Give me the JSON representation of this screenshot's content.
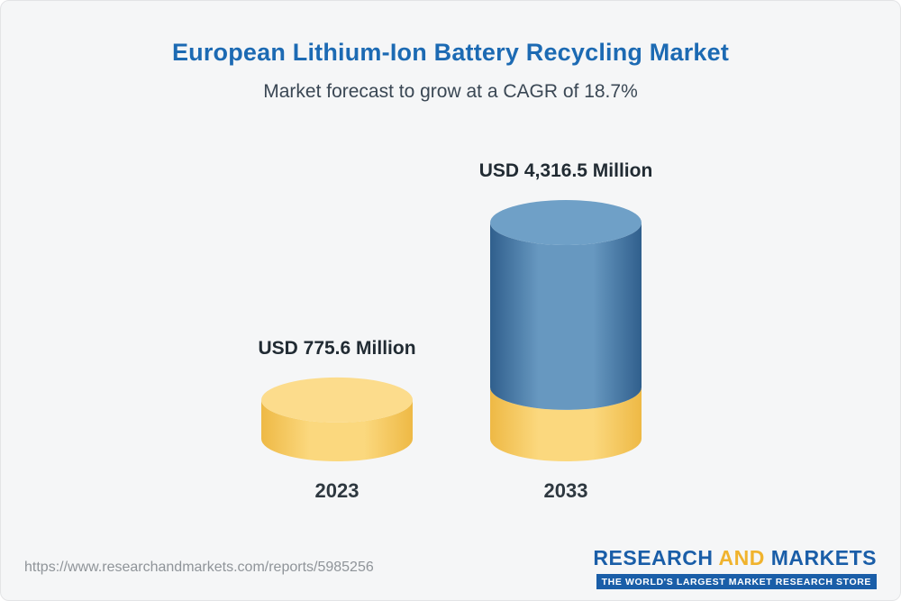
{
  "header": {
    "title": "European Lithium-Ion Battery Recycling Market",
    "subtitle": "Market forecast to grow at a CAGR of 18.7%"
  },
  "chart_data": {
    "type": "bar",
    "variant": "3d-cylinder",
    "categories": [
      "2023",
      "2033"
    ],
    "values": [
      775.6,
      4316.5
    ],
    "value_labels": [
      "USD 775.6 Million",
      "USD 4,316.5 Million"
    ],
    "unit": "USD Million",
    "title": "European Lithium-Ion Battery Recycling Market",
    "cagr": "18.7%",
    "legend_position": "none",
    "grid": false,
    "colors": {
      "base_body_dark": "#eeb945",
      "base_body_light": "#fbd87e",
      "base_top": "#fcdc8c",
      "growth_body_dark": "#305f8d",
      "growth_body_light": "#6798c0",
      "growth_top": "#6fa0c7",
      "title_accent": "#1c6ab3"
    }
  },
  "footer": {
    "url": "https://www.researchandmarkets.com/reports/5985256",
    "logo": {
      "research": "RESEARCH",
      "and": "AND",
      "markets": "MARKETS",
      "tagline": "THE WORLD'S LARGEST MARKET RESEARCH STORE"
    }
  }
}
